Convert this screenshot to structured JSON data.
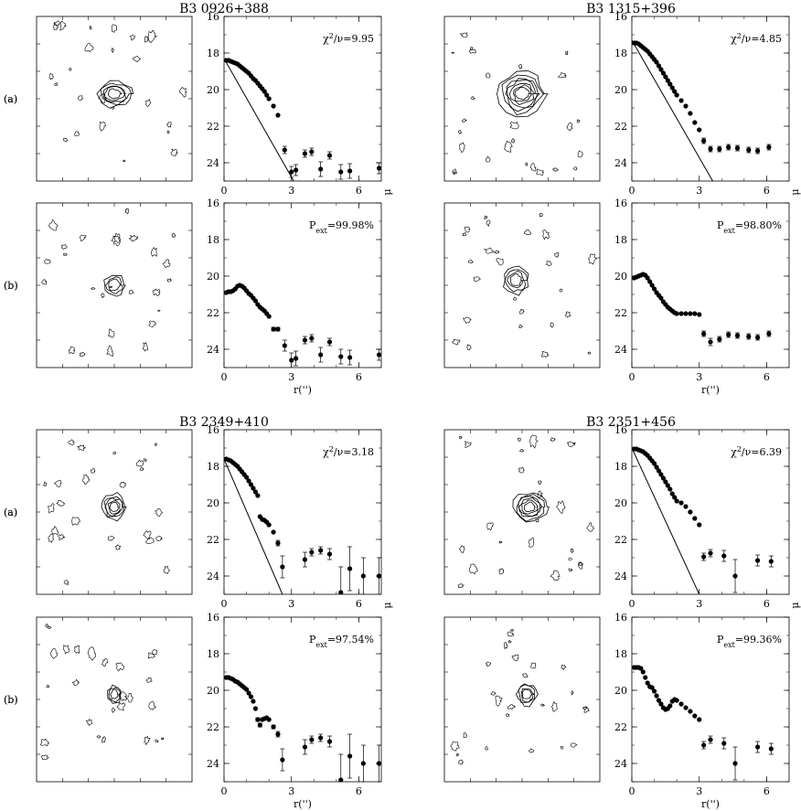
{
  "chart_data": [
    {
      "type": "scatter",
      "object": "B3 0926+388",
      "rows": [
        {
          "panel_label": "(a)",
          "annotation_text": "χ²/ν=9.95",
          "ylim": [
            25,
            16
          ],
          "xlim": [
            0,
            7
          ],
          "yticks": [
            16,
            18,
            20,
            22,
            24
          ],
          "xticks": [
            0,
            3,
            6
          ],
          "ylabel": "μ",
          "xlabel": "",
          "x": [
            0.1,
            0.2,
            0.3,
            0.4,
            0.5,
            0.6,
            0.7,
            0.8,
            0.9,
            1.0,
            1.1,
            1.2,
            1.3,
            1.4,
            1.5,
            1.6,
            1.7,
            1.8,
            1.9,
            2.0,
            2.2,
            2.4,
            2.7,
            3.0,
            3.2,
            3.6,
            3.9,
            4.3,
            4.7,
            5.2,
            5.6,
            6.9
          ],
          "y": [
            18.4,
            18.4,
            18.45,
            18.5,
            18.55,
            18.6,
            18.7,
            18.8,
            18.9,
            19.0,
            19.1,
            19.25,
            19.4,
            19.5,
            19.65,
            19.8,
            19.95,
            20.1,
            20.3,
            20.5,
            20.9,
            21.4,
            23.3,
            24.5,
            24.4,
            23.5,
            23.4,
            24.35,
            23.6,
            24.5,
            24.45,
            24.3
          ],
          "yerr": [
            0,
            0,
            0,
            0,
            0,
            0,
            0,
            0,
            0,
            0,
            0,
            0,
            0,
            0,
            0,
            0,
            0,
            0,
            0,
            0,
            0,
            0,
            0.2,
            0.3,
            0.3,
            0.2,
            0.2,
            0.4,
            0.2,
            0.4,
            0.4,
            0.3
          ],
          "fit_line": {
            "x": [
              0,
              3.1
            ],
            "y": [
              18.3,
              25
            ]
          },
          "contour": {
            "cx": 0.5,
            "cy": 0.47,
            "levels": 5,
            "rx0": 0.06,
            "ry0": 0.04
          }
        },
        {
          "panel_label": "(b)",
          "annotation_text": "P_ext=99.98%",
          "ylim": [
            25,
            16
          ],
          "xlim": [
            0,
            7
          ],
          "yticks": [
            16,
            18,
            20,
            22,
            24
          ],
          "xticks": [
            0,
            3,
            6
          ],
          "ylabel": "",
          "xlabel": "r('')",
          "x": [
            0.1,
            0.2,
            0.3,
            0.4,
            0.5,
            0.6,
            0.7,
            0.8,
            0.9,
            1.0,
            1.1,
            1.2,
            1.3,
            1.4,
            1.5,
            1.6,
            1.7,
            1.8,
            1.9,
            2.0,
            2.2,
            2.4,
            2.7,
            3.0,
            3.2,
            3.6,
            3.9,
            4.3,
            4.7,
            5.2,
            5.6,
            6.9
          ],
          "y": [
            20.9,
            20.85,
            20.85,
            20.8,
            20.7,
            20.55,
            20.5,
            20.55,
            20.65,
            20.8,
            20.95,
            21.05,
            21.2,
            21.35,
            21.55,
            21.7,
            21.8,
            21.9,
            22.05,
            22.2,
            22.9,
            22.9,
            23.8,
            24.6,
            24.5,
            23.5,
            23.4,
            24.3,
            23.6,
            24.4,
            24.45,
            24.3
          ],
          "yerr": [
            0,
            0,
            0,
            0,
            0,
            0,
            0,
            0,
            0,
            0,
            0,
            0,
            0,
            0,
            0,
            0,
            0,
            0,
            0,
            0,
            0.1,
            0.1,
            0.3,
            0.4,
            0.4,
            0.2,
            0.2,
            0.4,
            0.2,
            0.4,
            0.4,
            0.3
          ],
          "contour": {
            "cx": 0.5,
            "cy": 0.5,
            "levels": 3,
            "rx0": 0.05,
            "ry0": 0.05
          }
        }
      ]
    },
    {
      "type": "scatter",
      "object": "B3 1315+396",
      "rows": [
        {
          "panel_label": "(a)",
          "annotation_text": "χ²/ν=4.85",
          "ylim": [
            25,
            16
          ],
          "xlim": [
            0,
            7
          ],
          "yticks": [
            16,
            18,
            20,
            22,
            24
          ],
          "xticks": [
            0,
            3,
            6
          ],
          "ylabel": "μ",
          "xlabel": "",
          "x": [
            0.1,
            0.2,
            0.3,
            0.4,
            0.5,
            0.6,
            0.7,
            0.8,
            0.9,
            1.0,
            1.1,
            1.2,
            1.3,
            1.4,
            1.5,
            1.6,
            1.7,
            1.8,
            1.9,
            2.0,
            2.2,
            2.4,
            2.6,
            2.8,
            3.0,
            3.2,
            3.5,
            3.9,
            4.3,
            4.7,
            5.2,
            5.6,
            6.1
          ],
          "y": [
            17.45,
            17.45,
            17.5,
            17.6,
            17.7,
            17.8,
            17.9,
            18.05,
            18.2,
            18.35,
            18.5,
            18.7,
            18.9,
            19.1,
            19.3,
            19.5,
            19.7,
            19.9,
            20.1,
            20.3,
            20.6,
            20.9,
            21.3,
            21.8,
            22.2,
            22.8,
            23.25,
            23.25,
            23.15,
            23.2,
            23.3,
            23.35,
            23.15
          ],
          "yerr": [
            0,
            0,
            0,
            0,
            0,
            0,
            0,
            0,
            0,
            0,
            0,
            0,
            0,
            0,
            0,
            0,
            0,
            0,
            0,
            0,
            0,
            0,
            0,
            0,
            0,
            0.15,
            0.15,
            0.15,
            0.15,
            0.15,
            0.15,
            0.15,
            0.15
          ],
          "fit_line": {
            "x": [
              0,
              3.6
            ],
            "y": [
              17.3,
              25
            ]
          },
          "contour": {
            "cx": 0.5,
            "cy": 0.47,
            "levels": 7,
            "rx0": 0.06,
            "ry0": 0.05
          }
        },
        {
          "panel_label": "(b)",
          "annotation_text": "P_ext=98.80%",
          "ylim": [
            25,
            16
          ],
          "xlim": [
            0,
            7
          ],
          "yticks": [
            16,
            18,
            20,
            22,
            24
          ],
          "xticks": [
            0,
            3,
            6
          ],
          "ylabel": "",
          "xlabel": "r('')",
          "x": [
            0.1,
            0.2,
            0.3,
            0.4,
            0.5,
            0.6,
            0.7,
            0.8,
            0.9,
            1.0,
            1.1,
            1.2,
            1.3,
            1.4,
            1.5,
            1.6,
            1.7,
            1.8,
            1.9,
            2.0,
            2.2,
            2.4,
            2.6,
            2.8,
            3.0,
            3.2,
            3.5,
            3.9,
            4.3,
            4.7,
            5.2,
            5.6,
            6.1
          ],
          "y": [
            20.1,
            20.05,
            20.0,
            19.95,
            19.9,
            19.95,
            20.1,
            20.3,
            20.5,
            20.7,
            20.9,
            21.05,
            21.2,
            21.4,
            21.55,
            21.7,
            21.8,
            21.9,
            22.0,
            22.05,
            22.05,
            22.05,
            22.05,
            22.05,
            22.1,
            23.15,
            23.6,
            23.45,
            23.2,
            23.25,
            23.3,
            23.35,
            23.15
          ],
          "yerr": [
            0,
            0,
            0,
            0,
            0,
            0,
            0,
            0,
            0,
            0,
            0,
            0,
            0,
            0,
            0,
            0,
            0,
            0,
            0,
            0,
            0,
            0,
            0,
            0,
            0,
            0.15,
            0.2,
            0.15,
            0.15,
            0.15,
            0.15,
            0.15,
            0.15
          ],
          "contour": {
            "cx": 0.46,
            "cy": 0.47,
            "levels": 4,
            "rx0": 0.05,
            "ry0": 0.05
          }
        }
      ]
    },
    {
      "type": "scatter",
      "object": "B3 2349+410",
      "rows": [
        {
          "panel_label": "(a)",
          "annotation_text": "χ²/ν=3.18",
          "ylim": [
            25,
            16
          ],
          "xlim": [
            0,
            7
          ],
          "yticks": [
            16,
            18,
            20,
            22,
            24
          ],
          "xticks": [
            0,
            3,
            6
          ],
          "ylabel": "μ",
          "xlabel": "",
          "x": [
            0.1,
            0.2,
            0.3,
            0.4,
            0.5,
            0.6,
            0.7,
            0.8,
            0.9,
            1.0,
            1.1,
            1.2,
            1.3,
            1.4,
            1.5,
            1.6,
            1.7,
            1.8,
            1.9,
            2.0,
            2.2,
            2.4,
            2.6,
            3.6,
            3.9,
            4.3,
            4.7,
            5.2,
            5.6,
            6.2,
            6.9
          ],
          "y": [
            17.6,
            17.65,
            17.7,
            17.8,
            17.9,
            18.0,
            18.15,
            18.3,
            18.45,
            18.6,
            18.8,
            19.0,
            19.2,
            19.4,
            19.6,
            20.75,
            20.9,
            20.95,
            21.05,
            21.2,
            21.6,
            22.2,
            23.5,
            23.1,
            22.7,
            22.6,
            22.8,
            24.9,
            23.6,
            24.0,
            24.0
          ],
          "yerr": [
            0,
            0,
            0,
            0,
            0,
            0,
            0,
            0,
            0,
            0,
            0,
            0,
            0,
            0,
            0,
            0,
            0,
            0,
            0,
            0,
            0,
            0.15,
            0.6,
            0.4,
            0.2,
            0.2,
            0.3,
            1.4,
            1.2,
            1.0,
            1.0
          ],
          "fit_line": {
            "x": [
              0,
              2.6
            ],
            "y": [
              17.6,
              25
            ]
          },
          "contour": {
            "cx": 0.5,
            "cy": 0.47,
            "levels": 5,
            "rx0": 0.04,
            "ry0": 0.04
          }
        },
        {
          "panel_label": "(b)",
          "annotation_text": "P_ext=97.54%",
          "ylim": [
            25,
            16
          ],
          "xlim": [
            0,
            7
          ],
          "yticks": [
            16,
            18,
            20,
            22,
            24
          ],
          "xticks": [
            0,
            3,
            6
          ],
          "ylabel": "",
          "xlabel": "r('')",
          "x": [
            0.1,
            0.2,
            0.3,
            0.4,
            0.5,
            0.6,
            0.7,
            0.8,
            0.9,
            1.0,
            1.1,
            1.2,
            1.3,
            1.4,
            1.5,
            1.6,
            1.7,
            1.8,
            1.9,
            2.0,
            2.2,
            2.4,
            2.6,
            3.6,
            3.9,
            4.3,
            4.7,
            5.2,
            5.6,
            6.2,
            6.9
          ],
          "y": [
            19.3,
            19.3,
            19.35,
            19.4,
            19.5,
            19.55,
            19.65,
            19.75,
            19.85,
            19.95,
            20.15,
            20.35,
            20.6,
            21.0,
            21.6,
            21.9,
            21.6,
            21.55,
            21.5,
            21.6,
            22.0,
            22.4,
            23.8,
            23.1,
            22.7,
            22.6,
            22.8,
            24.9,
            23.6,
            24.0,
            24.0
          ],
          "yerr": [
            0,
            0,
            0,
            0,
            0,
            0,
            0,
            0,
            0,
            0,
            0,
            0,
            0,
            0,
            0.1,
            0.1,
            0,
            0,
            0,
            0,
            0.1,
            0.15,
            0.6,
            0.4,
            0.2,
            0.2,
            0.3,
            1.4,
            1.2,
            1.0,
            1.0
          ],
          "contour": {
            "cx": 0.5,
            "cy": 0.47,
            "levels": 3,
            "rx0": 0.035,
            "ry0": 0.04
          }
        }
      ]
    },
    {
      "type": "scatter",
      "object": "B3 2351+456",
      "rows": [
        {
          "panel_label": "(a)",
          "annotation_text": "χ²/ν=6.39",
          "ylim": [
            25,
            16
          ],
          "xlim": [
            0,
            7
          ],
          "yticks": [
            16,
            18,
            20,
            22,
            24
          ],
          "xticks": [
            0,
            3,
            6
          ],
          "ylabel": "μ",
          "xlabel": "",
          "x": [
            0.1,
            0.2,
            0.3,
            0.4,
            0.5,
            0.6,
            0.7,
            0.8,
            0.9,
            1.0,
            1.1,
            1.2,
            1.3,
            1.4,
            1.5,
            1.6,
            1.7,
            1.8,
            1.9,
            2.0,
            2.2,
            2.4,
            2.6,
            2.8,
            3.0,
            3.2,
            3.5,
            4.1,
            4.6,
            5.6,
            6.2
          ],
          "y": [
            17.05,
            17.05,
            17.1,
            17.15,
            17.2,
            17.3,
            17.4,
            17.55,
            17.7,
            17.85,
            18.05,
            18.25,
            18.45,
            18.65,
            18.85,
            19.05,
            19.25,
            19.5,
            19.7,
            19.9,
            20.0,
            20.2,
            20.5,
            20.85,
            21.2,
            22.95,
            22.75,
            22.9,
            24.0,
            23.15,
            23.2
          ],
          "yerr": [
            0,
            0,
            0,
            0,
            0,
            0,
            0,
            0,
            0,
            0,
            0,
            0,
            0,
            0,
            0,
            0,
            0,
            0,
            0,
            0,
            0,
            0,
            0,
            0,
            0,
            0.2,
            0.2,
            0.3,
            0.9,
            0.3,
            0.3
          ],
          "fit_line": {
            "x": [
              0,
              3.0
            ],
            "y": [
              17.0,
              25
            ]
          },
          "contour": {
            "cx": 0.55,
            "cy": 0.47,
            "levels": 6,
            "rx0": 0.05,
            "ry0": 0.04
          }
        },
        {
          "panel_label": "(b)",
          "annotation_text": "P_ext=99.36%",
          "ylim": [
            25,
            16
          ],
          "xlim": [
            0,
            7
          ],
          "yticks": [
            16,
            18,
            20,
            22,
            24
          ],
          "xticks": [
            0,
            3,
            6
          ],
          "ylabel": "",
          "xlabel": "r('')",
          "x": [
            0.1,
            0.2,
            0.3,
            0.4,
            0.5,
            0.6,
            0.7,
            0.8,
            0.9,
            1.0,
            1.1,
            1.2,
            1.3,
            1.4,
            1.5,
            1.6,
            1.7,
            1.8,
            1.9,
            2.0,
            2.2,
            2.4,
            2.6,
            2.8,
            3.0,
            3.2,
            3.5,
            4.1,
            4.6,
            5.6,
            6.2
          ],
          "y": [
            18.75,
            18.75,
            18.75,
            18.8,
            19.0,
            19.3,
            19.6,
            19.8,
            19.85,
            20.05,
            20.3,
            20.55,
            20.75,
            20.95,
            21.05,
            21.0,
            20.85,
            20.6,
            20.5,
            20.55,
            20.75,
            20.95,
            21.15,
            21.4,
            21.6,
            23.0,
            22.7,
            22.9,
            24.0,
            23.1,
            23.2
          ],
          "yerr": [
            0,
            0,
            0,
            0,
            0,
            0,
            0,
            0,
            0,
            0,
            0,
            0,
            0,
            0,
            0,
            0,
            0,
            0,
            0,
            0,
            0,
            0,
            0,
            0,
            0,
            0.2,
            0.2,
            0.3,
            0.9,
            0.3,
            0.3
          ],
          "contour": {
            "cx": 0.53,
            "cy": 0.47,
            "levels": 4,
            "rx0": 0.04,
            "ry0": 0.04
          }
        }
      ]
    }
  ]
}
